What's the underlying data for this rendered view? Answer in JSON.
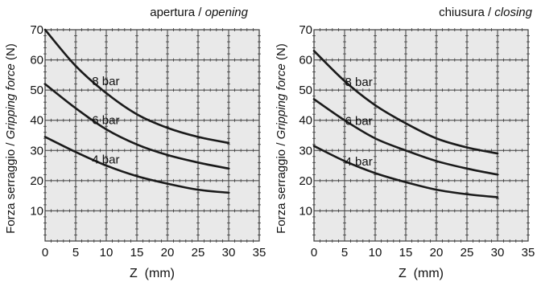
{
  "colors": {
    "plot_background": "#e9e9e9",
    "grid": "#3a3a3a",
    "curve": "#1a1a1a",
    "text": "#111111"
  },
  "chart_data": [
    {
      "type": "line",
      "title_plain": "apertura / ",
      "title_italic": "opening",
      "xlabel": "Z  (mm)",
      "ylabel_plain": "Forza serraggio / ",
      "ylabel_italic": "Gripping force",
      "ylabel_unit": " (N)",
      "xlim": [
        0,
        35
      ],
      "ylim": [
        0,
        70
      ],
      "x_ticks": [
        0,
        5,
        10,
        15,
        20,
        25,
        30,
        35
      ],
      "y_ticks": [
        10,
        20,
        30,
        40,
        50,
        60,
        70
      ],
      "grid": true,
      "x": [
        0,
        5,
        10,
        15,
        20,
        25,
        30
      ],
      "series": [
        {
          "name": "8 bar",
          "values": [
            70,
            58,
            49,
            42,
            37.5,
            34.5,
            32.5
          ]
        },
        {
          "name": "6 bar",
          "values": [
            52,
            44,
            37,
            32,
            28.5,
            26,
            24
          ]
        },
        {
          "name": "4 bar",
          "values": [
            34.5,
            29.5,
            25,
            21.5,
            19,
            17,
            16
          ]
        }
      ]
    },
    {
      "type": "line",
      "title_plain": "chiusura / ",
      "title_italic": "closing",
      "xlabel": "Z  (mm)",
      "ylabel_plain": "Forza serraggio / ",
      "ylabel_italic": "Gripping force",
      "ylabel_unit": " (N)",
      "xlim": [
        0,
        35
      ],
      "ylim": [
        0,
        70
      ],
      "x_ticks": [
        0,
        5,
        10,
        15,
        20,
        25,
        30,
        35
      ],
      "y_ticks": [
        10,
        20,
        30,
        40,
        50,
        60,
        70
      ],
      "grid": true,
      "x": [
        0,
        5,
        10,
        15,
        20,
        25,
        30
      ],
      "series": [
        {
          "name": "8 bar",
          "values": [
            63,
            53,
            45,
            39,
            34,
            31,
            29
          ]
        },
        {
          "name": "6 bar",
          "values": [
            47,
            40,
            34,
            30,
            26.5,
            24,
            22
          ]
        },
        {
          "name": "4 bar",
          "values": [
            31.5,
            26.5,
            22.5,
            19.5,
            17,
            15.5,
            14.5
          ]
        }
      ]
    }
  ]
}
